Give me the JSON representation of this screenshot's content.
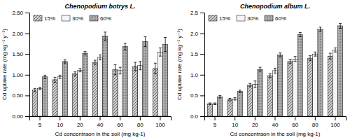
{
  "chart_data": [
    {
      "type": "bar",
      "title": "Chenopodium botrys L.",
      "xlabel": "Cd concentraon in the soil (mg kg-1)",
      "ylabel": "Cd uptake rate (mg kg⁻¹ y⁻¹)",
      "categories": [
        "5",
        "10",
        "20",
        "40",
        "60",
        "80",
        "100"
      ],
      "series": [
        {
          "name": "15%",
          "color": "#cccccc",
          "values": [
            0.63,
            0.88,
            1.02,
            1.3,
            1.12,
            1.2,
            1.15
          ],
          "errors": [
            0.04,
            0.06,
            0.05,
            0.05,
            0.12,
            0.1,
            0.13
          ]
        },
        {
          "name": "30%",
          "color": "#f5f5f5",
          "values": [
            0.67,
            0.95,
            1.11,
            1.42,
            1.1,
            1.22,
            1.55
          ],
          "errors": [
            0.03,
            0.04,
            0.04,
            0.06,
            0.08,
            0.1,
            0.1
          ]
        },
        {
          "name": "60%",
          "color": "#aaaaaa",
          "values": [
            0.95,
            1.32,
            1.52,
            1.93,
            1.68,
            1.8,
            1.73
          ],
          "errors": [
            0.04,
            0.04,
            0.04,
            0.1,
            0.08,
            0.12,
            0.17
          ]
        }
      ],
      "ylim": [
        0,
        2.5
      ],
      "yticks": [
        {
          "value": 0,
          "label": "0.00"
        },
        {
          "value": 0.5,
          "label": "0.50"
        },
        {
          "value": 1,
          "label": "1.00"
        },
        {
          "value": 1.5,
          "label": "1.50"
        },
        {
          "value": 2,
          "label": "2.00"
        },
        {
          "value": 2.5,
          "label": "2.50"
        }
      ],
      "legend": "upper left",
      "grid": false
    },
    {
      "type": "bar",
      "title": "Chenopodium album L.",
      "xlabel": "Cd concentraon in the soil (mg kg-1)",
      "ylabel": "Cd uptake rate (mg kg⁻¹ y⁻¹)",
      "categories": [
        "5",
        "10",
        "20",
        "40",
        "60",
        "80",
        "100"
      ],
      "series": [
        {
          "name": "15%",
          "color": "#cccccc",
          "values": [
            0.3,
            0.4,
            0.75,
            0.98,
            1.32,
            1.4,
            1.45
          ],
          "errors": [
            0.02,
            0.03,
            0.04,
            0.05,
            0.05,
            0.06,
            0.07
          ]
        },
        {
          "name": "30%",
          "color": "#f5f5f5",
          "values": [
            0.3,
            0.42,
            0.77,
            1.1,
            1.38,
            1.5,
            1.6
          ],
          "errors": [
            0.02,
            0.03,
            0.08,
            0.06,
            0.06,
            0.05,
            0.05
          ]
        },
        {
          "name": "60%",
          "color": "#aaaaaa",
          "values": [
            0.47,
            0.6,
            1.13,
            1.48,
            1.97,
            2.1,
            2.18
          ],
          "errors": [
            0.03,
            0.03,
            0.05,
            0.05,
            0.05,
            0.05,
            0.06
          ]
        }
      ],
      "ylim": [
        0,
        2.5
      ],
      "yticks": [
        {
          "value": 0,
          "label": "0.0"
        },
        0.5,
        {
          "value": 1,
          "label": "1.0"
        },
        1.5,
        {
          "value": 2,
          "label": "2.0"
        },
        2.5
      ],
      "legend": "upper left",
      "grid": false
    }
  ]
}
